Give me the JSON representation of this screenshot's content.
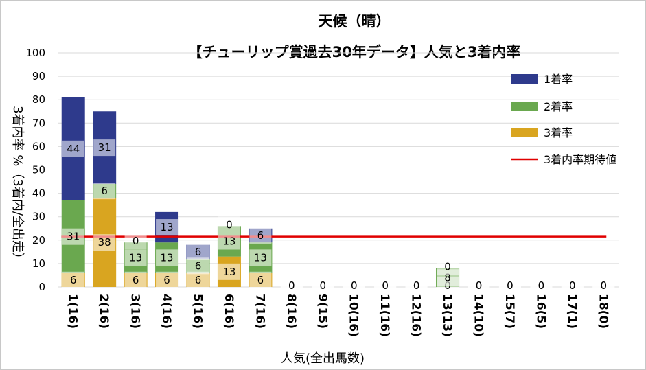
{
  "chart_data": {
    "type": "bar",
    "stacked": true,
    "title": "天候（晴）",
    "subtitle": "【チューリップ賞過去30年データ】人気と3着内率",
    "xlabel": "人気(全出馬数)",
    "ylabel": "3着内率 %（3着内/全出走）",
    "ylim": [
      0,
      100
    ],
    "yticks": [
      0,
      10,
      20,
      30,
      40,
      50,
      60,
      70,
      80,
      90,
      100
    ],
    "grid": true,
    "legend_position": "right",
    "categories": [
      "1(16)",
      "2(16)",
      "3(16)",
      "4(16)",
      "5(16)",
      "6(16)",
      "7(16)",
      "8(16)",
      "9(15)",
      "10(16)",
      "11(16)",
      "12(16)",
      "13(13)",
      "14(10)",
      "15(7)",
      "16(5)",
      "17(1)",
      "18(0)"
    ],
    "series": [
      {
        "name": "3着率",
        "color": "#d9a520",
        "values": [
          6,
          38,
          6,
          6,
          6,
          13,
          6,
          0,
          0,
          0,
          0,
          0,
          0,
          0,
          0,
          0,
          0,
          0
        ]
      },
      {
        "name": "2着率",
        "color": "#6aa84f",
        "values": [
          31,
          6,
          13,
          13,
          6,
          13,
          13,
          0,
          0,
          0,
          0,
          0,
          8,
          0,
          0,
          0,
          0,
          0
        ]
      },
      {
        "name": "1着率",
        "color": "#2e3a8c",
        "values": [
          44,
          31,
          0,
          13,
          6,
          0,
          6,
          0,
          0,
          0,
          0,
          0,
          0,
          0,
          0,
          0,
          0,
          0
        ]
      }
    ],
    "reference_line": {
      "name": "3着内率期待値",
      "value": 21.5,
      "color": "#e00000"
    },
    "legend": [
      "1着率",
      "2着率",
      "3着率",
      "3着内率期待値"
    ]
  }
}
